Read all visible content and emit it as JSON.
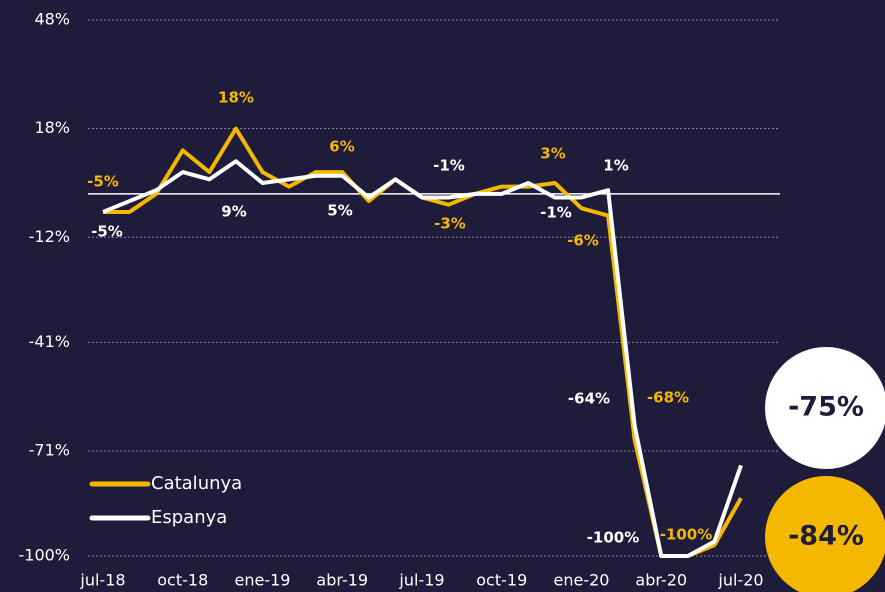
{
  "chart_data": {
    "type": "line",
    "categories": [
      "jul-18",
      null,
      null,
      "oct-18",
      null,
      null,
      "ene-19",
      null,
      null,
      "abr-19",
      null,
      null,
      "jul-19",
      null,
      null,
      "oct-19",
      null,
      null,
      "ene-20",
      null,
      null,
      "abr-20",
      null,
      null,
      "jul-20"
    ],
    "series": [
      {
        "name": "Catalunya",
        "color": "#f5b800",
        "values": [
          -5,
          -5,
          0,
          12,
          6,
          18,
          6,
          2,
          6,
          6,
          -2,
          4,
          -1,
          -3,
          0,
          2,
          2,
          3,
          -4,
          -6,
          -68,
          -100,
          -100,
          -97,
          -84
        ],
        "value_labels": [
          "-5%",
          null,
          null,
          null,
          null,
          "18%",
          null,
          null,
          null,
          "6%",
          null,
          null,
          null,
          "-3%",
          null,
          null,
          null,
          "3%",
          null,
          "-6%",
          "-68%",
          null,
          "-100%",
          null,
          "-84%"
        ]
      },
      {
        "name": "Espanya",
        "color": "#ffffff",
        "values": [
          -5,
          -2,
          1,
          6,
          4,
          9,
          3,
          4,
          5,
          5,
          -1,
          4,
          -1,
          -1,
          0,
          0,
          3,
          -1,
          -1,
          1,
          -64,
          -100,
          -100,
          -96,
          -75
        ],
        "value_labels": [
          "-5%",
          null,
          null,
          null,
          null,
          "9%",
          null,
          null,
          null,
          "5%",
          null,
          null,
          "-1%",
          null,
          null,
          null,
          null,
          "-1%",
          null,
          "1%",
          "-64%",
          "-100%",
          null,
          null,
          "-75%"
        ]
      }
    ],
    "ylim": [
      -100,
      48
    ],
    "yticks": [
      {
        "value": -100,
        "label": "-100%"
      },
      {
        "value": -71,
        "label": "-71%"
      },
      {
        "value": -41,
        "label": "-41%"
      },
      {
        "value": -12,
        "label": "-12%"
      },
      {
        "value": 18,
        "label": "18%"
      },
      {
        "value": 48,
        "label": "48%"
      }
    ],
    "grid": true
  }
}
